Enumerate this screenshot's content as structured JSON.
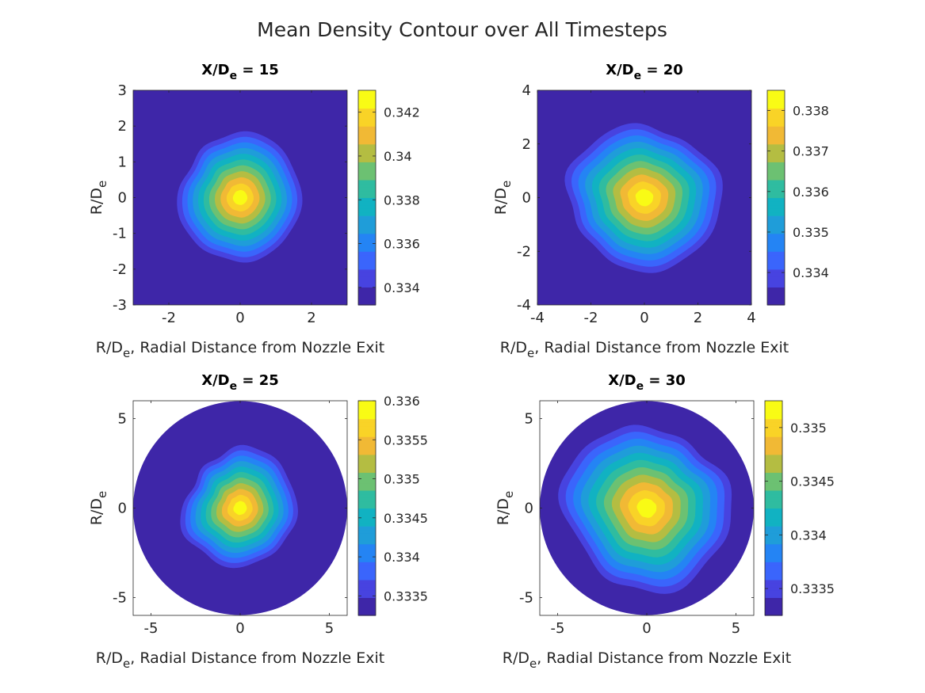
{
  "figure": {
    "title": "Mean Density Contour over All Timesteps"
  },
  "chart_data": [
    {
      "type": "heatmap",
      "title_base": "X/D",
      "title_sub": "e",
      "title_rest": " = 15",
      "xlabel_base": "R/D",
      "xlabel_sub": "e",
      "xlabel_rest": ", Radial Distance from Nozzle Exit",
      "ylabel_base": "R/D",
      "ylabel_sub": "e",
      "xlim": [
        -3,
        3
      ],
      "ylim": [
        -3,
        3
      ],
      "xticks": [
        -2,
        0,
        2
      ],
      "yticks": [
        -3,
        -2,
        -1,
        0,
        1,
        2,
        3
      ],
      "domain_shape": "square",
      "center": [
        0,
        0
      ],
      "core_radius": 1.9,
      "roughness": 0.1,
      "clim": [
        0.3332,
        0.343
      ],
      "colorbar_ticks": [
        0.334,
        0.336,
        0.338,
        0.34,
        0.342
      ],
      "colorbar_labels": [
        "0.334",
        "0.336",
        "0.338",
        "0.34",
        "0.342"
      ]
    },
    {
      "type": "heatmap",
      "title_base": "X/D",
      "title_sub": "e",
      "title_rest": " = 20",
      "xlabel_base": "R/D",
      "xlabel_sub": "e",
      "xlabel_rest": ", Radial Distance from Nozzle Exit",
      "ylabel_base": "R/D",
      "ylabel_sub": "e",
      "xlim": [
        -4,
        4
      ],
      "ylim": [
        -4,
        4
      ],
      "xticks": [
        -4,
        -2,
        0,
        2,
        4
      ],
      "yticks": [
        -4,
        -2,
        0,
        2,
        4
      ],
      "domain_shape": "square",
      "center": [
        0,
        0
      ],
      "core_radius": 3.0,
      "roughness": 0.14,
      "clim": [
        0.3332,
        0.3385
      ],
      "colorbar_ticks": [
        0.334,
        0.335,
        0.336,
        0.337,
        0.338
      ],
      "colorbar_labels": [
        "0.334",
        "0.335",
        "0.336",
        "0.337",
        "0.338"
      ]
    },
    {
      "type": "heatmap",
      "title_base": "X/D",
      "title_sub": "e",
      "title_rest": " = 25",
      "xlabel_base": "R/D",
      "xlabel_sub": "e",
      "xlabel_rest": ", Radial Distance from Nozzle Exit",
      "ylabel_base": "R/D",
      "ylabel_sub": "e",
      "xlim": [
        -6,
        6
      ],
      "ylim": [
        -6,
        6
      ],
      "xticks": [
        -5,
        0,
        5
      ],
      "yticks": [
        -5,
        0,
        5
      ],
      "domain_shape": "circle",
      "domain_radius": 6,
      "center": [
        0,
        0
      ],
      "core_radius": 3.5,
      "roughness": 0.16,
      "clim": [
        0.33325,
        0.336
      ],
      "colorbar_ticks": [
        0.3335,
        0.334,
        0.3345,
        0.335,
        0.3355,
        0.336
      ],
      "colorbar_labels": [
        "0.3335",
        "0.334",
        "0.3345",
        "0.335",
        "0.3355",
        "0.336"
      ]
    },
    {
      "type": "heatmap",
      "title_base": "X/D",
      "title_sub": "e",
      "title_rest": " = 30",
      "xlabel_base": "R/D",
      "xlabel_sub": "e",
      "xlabel_rest": ", Radial Distance from Nozzle Exit",
      "ylabel_base": "R/D",
      "ylabel_sub": "e",
      "xlim": [
        -6,
        6
      ],
      "ylim": [
        -6,
        6
      ],
      "xticks": [
        -5,
        0,
        5
      ],
      "yticks": [
        -5,
        0,
        5
      ],
      "domain_shape": "circle",
      "domain_radius": 6,
      "center": [
        0,
        0
      ],
      "core_radius": 5.0,
      "roughness": 0.16,
      "clim": [
        0.33325,
        0.33525
      ],
      "colorbar_ticks": [
        0.3335,
        0.334,
        0.3345,
        0.335
      ],
      "colorbar_labels": [
        "0.3335",
        "0.334",
        "0.3345",
        "0.335"
      ]
    }
  ],
  "colormap": [
    "#3e26a8",
    "#4743e0",
    "#3a65fc",
    "#2484f4",
    "#1f9dd9",
    "#11b2c2",
    "#2fbca0",
    "#6cc172",
    "#b4bd42",
    "#f1b935",
    "#f9d327",
    "#f9fb15"
  ]
}
